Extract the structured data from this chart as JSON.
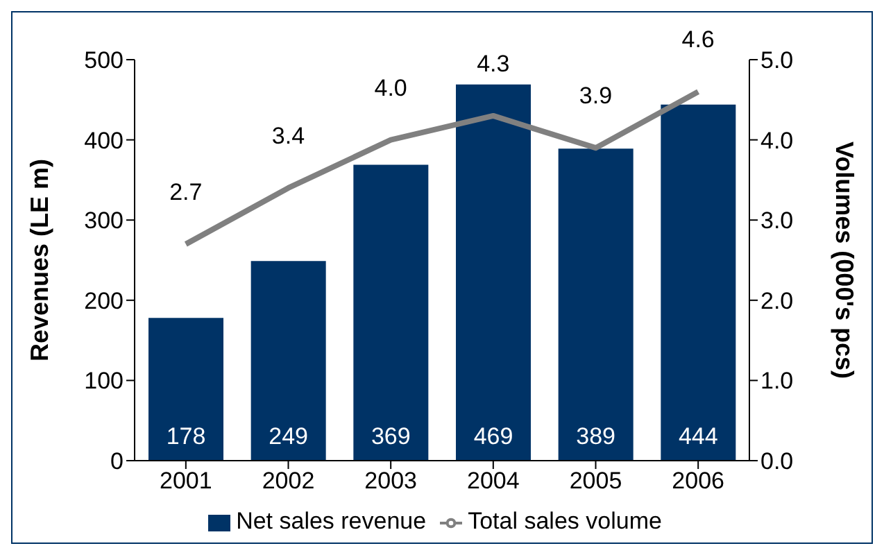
{
  "chart_data": {
    "type": "bar",
    "categories": [
      "2001",
      "2002",
      "2003",
      "2004",
      "2005",
      "2006"
    ],
    "series": [
      {
        "name": "Net sales revenue",
        "color": "#003366",
        "values": [
          178,
          249,
          369,
          469,
          389,
          444
        ],
        "value_labels": [
          "178",
          "249",
          "369",
          "469",
          "389",
          "444"
        ]
      },
      {
        "name": "Total sales volume",
        "type": "line",
        "axis": "y2",
        "color": "#808080",
        "values": [
          2.7,
          3.4,
          4.0,
          4.3,
          3.9,
          4.6
        ],
        "value_labels": [
          "2.7",
          "3.4",
          "4.0",
          "4.3",
          "3.9",
          "4.6"
        ]
      }
    ],
    "ylabel": "Revenues (LE m)",
    "y2label": "Volumes (000's pcs)",
    "ylim": [
      0,
      500
    ],
    "yticks": [
      0,
      100,
      200,
      300,
      400,
      500
    ],
    "y2lim": [
      0,
      5
    ],
    "y2ticks": [
      {
        "value": 0,
        "label": "0.0"
      },
      {
        "value": 1,
        "label": "1.0"
      },
      {
        "value": 2,
        "label": "2.0"
      },
      {
        "value": 3,
        "label": "3.0"
      },
      {
        "value": 4,
        "label": "4.0"
      },
      {
        "value": 5,
        "label": "5.0"
      }
    ],
    "grid": false,
    "legend": "bottom"
  }
}
